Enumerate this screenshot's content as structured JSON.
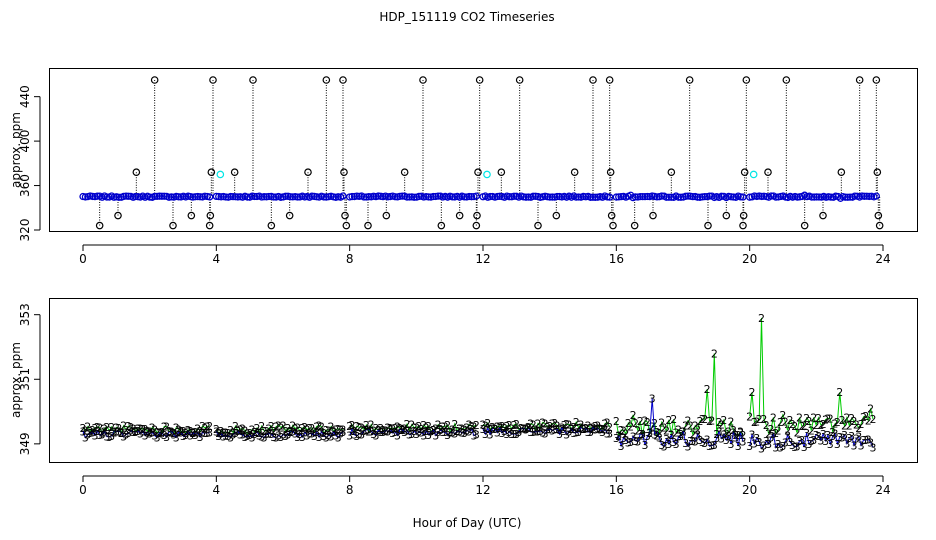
{
  "figure": {
    "title": "HDP_151119  CO2 Timeseries",
    "xlabel": "Hour of Day (UTC)"
  },
  "colors": {
    "black": "#000000",
    "blue": "#0000cc",
    "cyan": "#00e5e5",
    "green": "#00cc00"
  },
  "chart_data": [
    {
      "type": "scatter",
      "ylabel": "approx. ppm",
      "xlim": [
        0,
        24
      ],
      "ylim": [
        320,
        455
      ],
      "xticks": [
        0,
        4,
        8,
        12,
        16,
        20,
        24
      ],
      "yticks": [
        320,
        360,
        400,
        440
      ],
      "series": [
        {
          "color": "blue",
          "marker": "circle",
          "segments": [
            {
              "x0": 0.0,
              "x1": 3.8,
              "base": 350
            },
            {
              "x0": 4.0,
              "x1": 7.8,
              "base": 350
            },
            {
              "x0": 8.0,
              "x1": 11.8,
              "base": 350
            },
            {
              "x0": 12.0,
              "x1": 15.8,
              "base": 350
            },
            {
              "x0": 16.0,
              "x1": 19.8,
              "base": 350
            },
            {
              "x0": 20.0,
              "x1": 23.8,
              "base": 350
            }
          ]
        },
        {
          "color": "black",
          "marker": "circle",
          "drop_lines": true,
          "points": [
            [
              0.5,
              324
            ],
            [
              1.05,
              333
            ],
            [
              1.6,
              372
            ],
            [
              2.15,
              455
            ],
            [
              2.7,
              324
            ],
            [
              3.25,
              333
            ],
            [
              3.8,
              324
            ],
            [
              3.82,
              333
            ],
            [
              3.85,
              372
            ],
            [
              3.9,
              455
            ],
            [
              4.55,
              372
            ],
            [
              5.1,
              455
            ],
            [
              5.65,
              324
            ],
            [
              6.2,
              333
            ],
            [
              6.75,
              372
            ],
            [
              7.3,
              455
            ],
            [
              7.8,
              455
            ],
            [
              7.83,
              372
            ],
            [
              7.86,
              333
            ],
            [
              7.9,
              324
            ],
            [
              8.55,
              324
            ],
            [
              9.1,
              333
            ],
            [
              9.65,
              372
            ],
            [
              10.2,
              455
            ],
            [
              10.75,
              324
            ],
            [
              11.3,
              333
            ],
            [
              11.8,
              324
            ],
            [
              11.82,
              333
            ],
            [
              11.85,
              372
            ],
            [
              11.9,
              455
            ],
            [
              12.55,
              372
            ],
            [
              13.1,
              455
            ],
            [
              13.65,
              324
            ],
            [
              14.2,
              333
            ],
            [
              14.75,
              372
            ],
            [
              15.3,
              455
            ],
            [
              15.8,
              455
            ],
            [
              15.83,
              372
            ],
            [
              15.86,
              333
            ],
            [
              15.9,
              324
            ],
            [
              16.55,
              324
            ],
            [
              17.1,
              333
            ],
            [
              17.65,
              372
            ],
            [
              18.2,
              455
            ],
            [
              18.75,
              324
            ],
            [
              19.3,
              333
            ],
            [
              19.8,
              324
            ],
            [
              19.82,
              333
            ],
            [
              19.85,
              372
            ],
            [
              19.9,
              455
            ],
            [
              20.55,
              372
            ],
            [
              21.1,
              455
            ],
            [
              21.65,
              324
            ],
            [
              22.2,
              333
            ],
            [
              22.75,
              372
            ],
            [
              23.3,
              455
            ],
            [
              23.8,
              455
            ],
            [
              23.83,
              372
            ],
            [
              23.86,
              333
            ],
            [
              23.9,
              324
            ]
          ]
        },
        {
          "color": "cyan",
          "marker": "circle",
          "points": [
            [
              4.0,
              370
            ],
            [
              12.0,
              370
            ],
            [
              20.0,
              370
            ]
          ]
        }
      ]
    },
    {
      "type": "scatter",
      "ylabel": "approx. ppm",
      "xlim": [
        0,
        24
      ],
      "ylim": [
        348.5,
        353.3
      ],
      "xticks": [
        0,
        4,
        8,
        12,
        16,
        20,
        24
      ],
      "yticks": [
        349,
        351,
        353
      ],
      "series": [
        {
          "marker_text": "3",
          "color": "blue",
          "segments": [
            {
              "x0": 0.0,
              "x1": 3.8,
              "base": 349.3
            },
            {
              "x0": 4.0,
              "x1": 7.8,
              "base": 349.3
            },
            {
              "x0": 8.0,
              "x1": 11.8,
              "base": 349.35
            },
            {
              "x0": 12.0,
              "x1": 15.8,
              "base": 349.4
            },
            {
              "x0": 16.0,
              "x1": 19.8,
              "base": 349.15
            },
            {
              "x0": 20.0,
              "x1": 23.7,
              "base": 349.1
            }
          ],
          "spikes": [
            [
              17.1,
              350.4
            ]
          ]
        },
        {
          "marker_text": "2",
          "color": "green",
          "segments": [
            {
              "x0": 0.0,
              "x1": 3.8,
              "base": 349.45
            },
            {
              "x0": 4.0,
              "x1": 7.8,
              "base": 349.45
            },
            {
              "x0": 8.0,
              "x1": 11.8,
              "base": 349.5
            },
            {
              "x0": 12.0,
              "x1": 15.8,
              "base": 349.55
            },
            {
              "x0": 16.0,
              "x1": 19.8,
              "base": 349.5
            },
            {
              "x0": 20.0,
              "x1": 23.7,
              "base": 349.6
            }
          ],
          "spikes": [
            [
              16.5,
              349.9
            ],
            [
              18.75,
              350.7
            ],
            [
              18.95,
              351.8
            ],
            [
              20.1,
              350.6
            ],
            [
              20.35,
              352.9
            ],
            [
              21.0,
              349.9
            ],
            [
              22.7,
              350.6
            ],
            [
              23.6,
              350.1
            ]
          ]
        }
      ]
    }
  ]
}
